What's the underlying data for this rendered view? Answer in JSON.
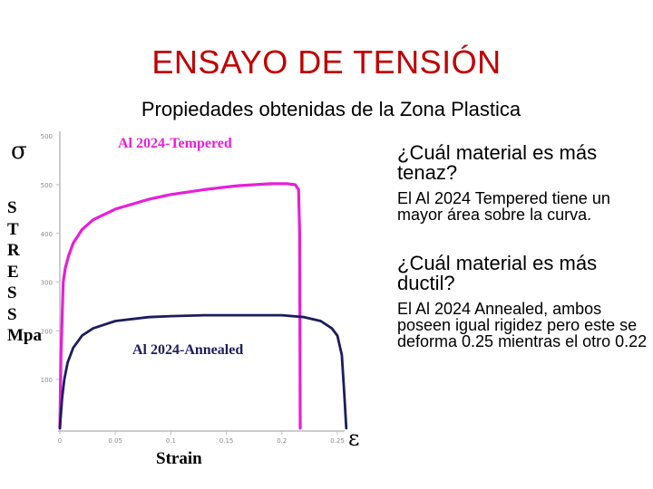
{
  "slide": {
    "title": "ENSAYO DE TENSIÓN",
    "subtitle": "Propiedades obtenidas de la Zona Plastica",
    "sigma_symbol": "σ",
    "stress_letters": [
      "S",
      "T",
      "R",
      "E",
      "S",
      "S",
      "Mpa"
    ],
    "strain_label": "Strain",
    "epsilon_symbol": "ε"
  },
  "qa": [
    {
      "question": "¿Cuál material es más tenaz?",
      "answer": "El Al 2024 Tempered tiene un mayor área sobre la curva."
    },
    {
      "question": "¿Cuál material es más ductil?",
      "answer": "El Al 2024 Annealed, ambos poseen igual rigidez pero este se deforma 0.25 mientras el otro 0.22"
    }
  ],
  "colors": {
    "title": "#c00000",
    "tempered": "#e81fd8",
    "annealed": "#1c1c5e",
    "axis_text": "#8a8a8a"
  },
  "chart_data": {
    "type": "line",
    "title": "",
    "xlabel": "Strain",
    "ylabel": "STRESS Mpa",
    "xlim": [
      0,
      0.27
    ],
    "ylim": [
      0,
      500
    ],
    "x_ticks": [
      "0",
      "0.05",
      "0.1",
      "0.15",
      "0.2",
      "0.25"
    ],
    "y_ticks": [
      "100",
      "200",
      "300",
      "400",
      "500"
    ],
    "y_tick_values": [
      100,
      200,
      300,
      400,
      500
    ],
    "x_tick_values": [
      0,
      0.05,
      0.1,
      0.15,
      0.2,
      0.25
    ],
    "top_tick_label": "500",
    "grid": false,
    "series": [
      {
        "name": "Al 2024-Tempered",
        "x": [
          0,
          0.001,
          0.003,
          0.005,
          0.008,
          0.012,
          0.02,
          0.03,
          0.05,
          0.08,
          0.1,
          0.13,
          0.16,
          0.19,
          0.205,
          0.212,
          0.215,
          0.216,
          0.2165
        ],
        "y": [
          0,
          150,
          300,
          330,
          355,
          380,
          408,
          428,
          450,
          470,
          480,
          490,
          498,
          502,
          502,
          500,
          490,
          400,
          0
        ]
      },
      {
        "name": "Al 2024-Annealed",
        "x": [
          0,
          0.002,
          0.004,
          0.007,
          0.012,
          0.02,
          0.03,
          0.05,
          0.08,
          0.1,
          0.13,
          0.16,
          0.2,
          0.22,
          0.235,
          0.245,
          0.25,
          0.254,
          0.256,
          0.258
        ],
        "y": [
          0,
          60,
          100,
          135,
          165,
          190,
          205,
          220,
          228,
          230,
          232,
          232,
          232,
          228,
          220,
          205,
          190,
          150,
          80,
          0
        ]
      }
    ]
  }
}
